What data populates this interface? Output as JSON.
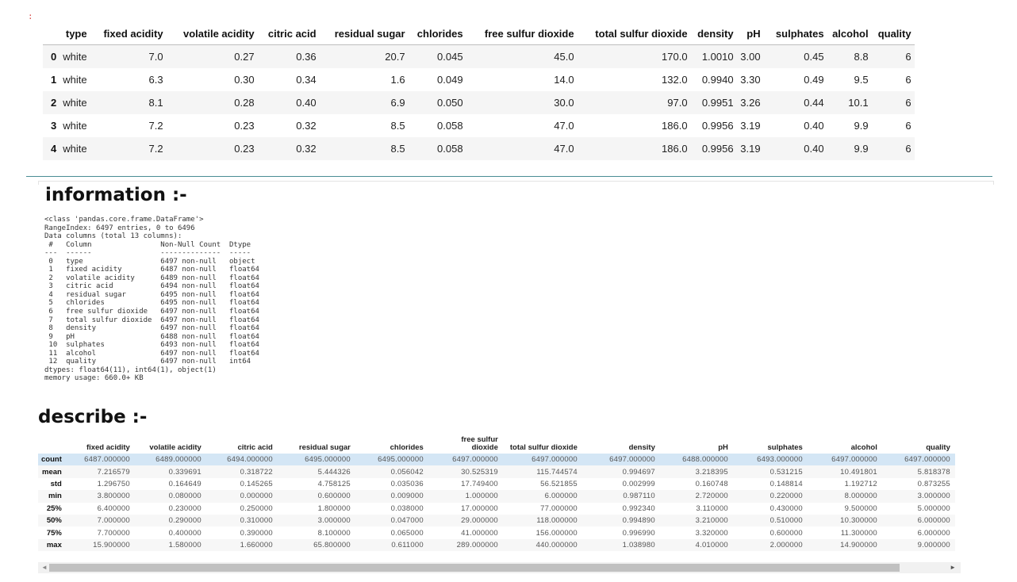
{
  "cell": {
    "prompt_marker": ":"
  },
  "head_table": {
    "columns": [
      "type",
      "fixed acidity",
      "volatile acidity",
      "citric acid",
      "residual sugar",
      "chlorides",
      "free sulfur dioxide",
      "total sulfur dioxide",
      "density",
      "pH",
      "sulphates",
      "alcohol",
      "quality"
    ],
    "rows": [
      {
        "index": "0",
        "cells": [
          "white",
          "7.0",
          "0.27",
          "0.36",
          "20.7",
          "0.045",
          "45.0",
          "170.0",
          "1.0010",
          "3.00",
          "0.45",
          "8.8",
          "6"
        ]
      },
      {
        "index": "1",
        "cells": [
          "white",
          "6.3",
          "0.30",
          "0.34",
          "1.6",
          "0.049",
          "14.0",
          "132.0",
          "0.9940",
          "3.30",
          "0.49",
          "9.5",
          "6"
        ]
      },
      {
        "index": "2",
        "cells": [
          "white",
          "8.1",
          "0.28",
          "0.40",
          "6.9",
          "0.050",
          "30.0",
          "97.0",
          "0.9951",
          "3.26",
          "0.44",
          "10.1",
          "6"
        ]
      },
      {
        "index": "3",
        "cells": [
          "white",
          "7.2",
          "0.23",
          "0.32",
          "8.5",
          "0.058",
          "47.0",
          "186.0",
          "0.9956",
          "3.19",
          "0.40",
          "9.9",
          "6"
        ]
      },
      {
        "index": "4",
        "cells": [
          "white",
          "7.2",
          "0.23",
          "0.32",
          "8.5",
          "0.058",
          "47.0",
          "186.0",
          "0.9956",
          "3.19",
          "0.40",
          "9.9",
          "6"
        ]
      }
    ]
  },
  "info_section": {
    "heading": "information :-",
    "lines": [
      "<class 'pandas.core.frame.DataFrame'>",
      "RangeIndex: 6497 entries, 0 to 6496",
      "Data columns (total 13 columns):",
      " #   Column                Non-Null Count  Dtype  ",
      "---  ------                --------------  -----  ",
      " 0   type                  6497 non-null   object ",
      " 1   fixed acidity         6487 non-null   float64",
      " 2   volatile acidity      6489 non-null   float64",
      " 3   citric acid           6494 non-null   float64",
      " 4   residual sugar        6495 non-null   float64",
      " 5   chlorides             6495 non-null   float64",
      " 6   free sulfur dioxide   6497 non-null   float64",
      " 7   total sulfur dioxide  6497 non-null   float64",
      " 8   density               6497 non-null   float64",
      " 9   pH                    6488 non-null   float64",
      " 10  sulphates             6493 non-null   float64",
      " 11  alcohol               6497 non-null   float64",
      " 12  quality               6497 non-null   int64  ",
      "dtypes: float64(11), int64(1), object(1)",
      "memory usage: 660.0+ KB"
    ]
  },
  "describe_section": {
    "heading": "describe :-",
    "columns": [
      "fixed acidity",
      "volatile acidity",
      "citric acid",
      "residual sugar",
      "chlorides",
      "free sulfur dioxide",
      "total sulfur dioxide",
      "density",
      "pH",
      "sulphates",
      "alcohol",
      "quality"
    ],
    "rows": [
      {
        "stat": "count",
        "cells": [
          "6487.000000",
          "6489.000000",
          "6494.000000",
          "6495.000000",
          "6495.000000",
          "6497.000000",
          "6497.000000",
          "6497.000000",
          "6488.000000",
          "6493.000000",
          "6497.000000",
          "6497.000000"
        ]
      },
      {
        "stat": "mean",
        "cells": [
          "7.216579",
          "0.339691",
          "0.318722",
          "5.444326",
          "0.056042",
          "30.525319",
          "115.744574",
          "0.994697",
          "3.218395",
          "0.531215",
          "10.491801",
          "5.818378"
        ]
      },
      {
        "stat": "std",
        "cells": [
          "1.296750",
          "0.164649",
          "0.145265",
          "4.758125",
          "0.035036",
          "17.749400",
          "56.521855",
          "0.002999",
          "0.160748",
          "0.148814",
          "1.192712",
          "0.873255"
        ]
      },
      {
        "stat": "min",
        "cells": [
          "3.800000",
          "0.080000",
          "0.000000",
          "0.600000",
          "0.009000",
          "1.000000",
          "6.000000",
          "0.987110",
          "2.720000",
          "0.220000",
          "8.000000",
          "3.000000"
        ]
      },
      {
        "stat": "25%",
        "cells": [
          "6.400000",
          "0.230000",
          "0.250000",
          "1.800000",
          "0.038000",
          "17.000000",
          "77.000000",
          "0.992340",
          "3.110000",
          "0.430000",
          "9.500000",
          "5.000000"
        ]
      },
      {
        "stat": "50%",
        "cells": [
          "7.000000",
          "0.290000",
          "0.310000",
          "3.000000",
          "0.047000",
          "29.000000",
          "118.000000",
          "0.994890",
          "3.210000",
          "0.510000",
          "10.300000",
          "6.000000"
        ]
      },
      {
        "stat": "75%",
        "cells": [
          "7.700000",
          "0.400000",
          "0.390000",
          "8.100000",
          "0.065000",
          "41.000000",
          "156.000000",
          "0.996990",
          "3.320000",
          "0.600000",
          "11.300000",
          "6.000000"
        ]
      },
      {
        "stat": "max",
        "cells": [
          "15.900000",
          "1.580000",
          "1.660000",
          "65.800000",
          "0.611000",
          "289.000000",
          "440.000000",
          "1.038980",
          "4.010000",
          "2.000000",
          "14.900000",
          "9.000000"
        ]
      }
    ]
  },
  "scrollbar": {
    "left_arrow": "◄",
    "right_arrow": "►"
  }
}
